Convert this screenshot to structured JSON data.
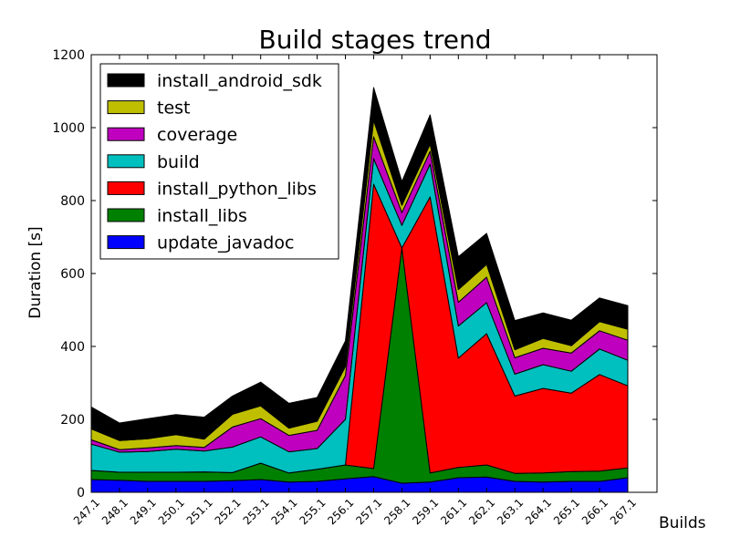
{
  "chart_data": {
    "type": "area",
    "stacked": true,
    "title": "Build stages trend",
    "xlabel": "Builds",
    "ylabel": "Duration [s]",
    "ylim": [
      0,
      1200
    ],
    "yticks": [
      "0",
      "200",
      "400",
      "600",
      "800",
      "1000",
      "1200"
    ],
    "grid": false,
    "legend_position": "top-left",
    "categories": [
      "247.1",
      "248.1",
      "249.1",
      "250.1",
      "251.1",
      "252.1",
      "253.1",
      "254.1",
      "255.1",
      "256.1",
      "257.1",
      "258.1",
      "259.1",
      "261.1",
      "262.1",
      "263.1",
      "264.1",
      "265.1",
      "266.1",
      "267.1"
    ],
    "series": [
      {
        "name": "update_javadoc",
        "color": "#0000ff",
        "values": [
          35,
          33,
          30,
          30,
          30,
          32,
          35,
          28,
          30,
          37,
          43,
          25,
          28,
          40,
          42,
          30,
          28,
          30,
          30,
          40
        ]
      },
      {
        "name": "install_libs",
        "color": "#008000",
        "values": [
          25,
          22,
          25,
          25,
          26,
          22,
          45,
          25,
          33,
          38,
          22,
          645,
          25,
          28,
          33,
          22,
          25,
          27,
          28,
          27
        ]
      },
      {
        "name": "install_python_libs",
        "color": "#ff0000",
        "values": [
          0,
          0,
          0,
          0,
          0,
          0,
          0,
          0,
          0,
          0,
          780,
          0,
          757,
          300,
          360,
          212,
          232,
          215,
          265,
          225
        ]
      },
      {
        "name": "build",
        "color": "#00bfbf",
        "values": [
          72,
          55,
          57,
          63,
          57,
          70,
          72,
          58,
          57,
          125,
          70,
          62,
          90,
          88,
          85,
          60,
          65,
          60,
          70,
          70
        ]
      },
      {
        "name": "coverage",
        "color": "#bf00bf",
        "values": [
          12,
          7,
          10,
          10,
          10,
          55,
          50,
          45,
          50,
          120,
          60,
          35,
          35,
          65,
          70,
          45,
          45,
          50,
          50,
          55
        ]
      },
      {
        "name": "test",
        "color": "#bfbf00",
        "values": [
          30,
          25,
          25,
          30,
          23,
          35,
          35,
          20,
          25,
          25,
          45,
          20,
          20,
          35,
          35,
          22,
          27,
          20,
          25,
          30
        ]
      },
      {
        "name": "install_android_sdk",
        "color": "#000000",
        "values": [
          60,
          48,
          55,
          55,
          60,
          50,
          65,
          68,
          65,
          70,
          90,
          65,
          80,
          90,
          85,
          80,
          70,
          70,
          65,
          65
        ]
      }
    ],
    "legend_order": [
      "install_android_sdk",
      "test",
      "coverage",
      "build",
      "install_python_libs",
      "install_libs",
      "update_javadoc"
    ]
  }
}
